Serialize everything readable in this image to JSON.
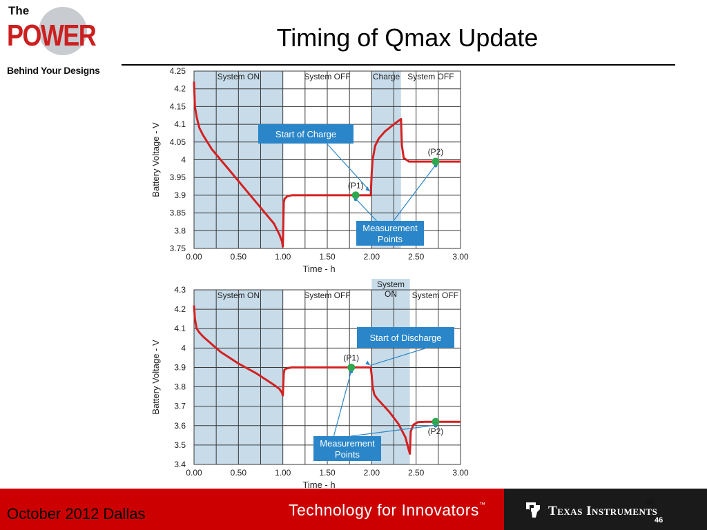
{
  "slide": {
    "logo": {
      "line1": "The",
      "line2": "POWER",
      "line3": "Behind Your Designs"
    },
    "title": "Timing of Qmax Update",
    "footer": {
      "date": "October 2012  Dallas",
      "slogan": "Technology for Innovators",
      "slogan_tm": "™",
      "company": "Texas Instruments",
      "page_number": "46"
    }
  },
  "chart_data": [
    {
      "type": "line",
      "xlabel": "Time - h",
      "ylabel": "Battery Voltage - V",
      "xlim": [
        0,
        3
      ],
      "ylim": [
        3.75,
        4.25
      ],
      "xticks": [
        "0.00",
        "0.50",
        "1.00",
        "1.50",
        "2.00",
        "2.50",
        "3.00"
      ],
      "yticks": [
        "3.75",
        "3.8",
        "3.85",
        "3.9",
        "3.95",
        "4",
        "4.05",
        "4.1",
        "4.15",
        "4.2",
        "4.25"
      ],
      "grid": true,
      "phases": [
        {
          "label": "System ON",
          "start": 0.0,
          "end": 1.0,
          "shaded": true
        },
        {
          "label": "System OFF",
          "start": 1.0,
          "end": 2.0,
          "shaded": false
        },
        {
          "label": "Charge",
          "start": 2.0,
          "end": 2.33,
          "shaded": true
        },
        {
          "label": "System OFF",
          "start": 2.33,
          "end": 3.0,
          "shaded": false
        }
      ],
      "series": [
        {
          "color": "#d42020",
          "x": [
            0.0,
            0.01,
            0.03,
            0.06,
            0.1,
            0.2,
            0.3,
            0.4,
            0.5,
            0.6,
            0.7,
            0.8,
            0.9,
            0.96,
            0.99,
            1.0,
            1.01,
            1.02,
            1.05,
            1.1,
            1.5,
            1.99,
            2.0,
            2.01,
            2.04,
            2.08,
            2.15,
            2.25,
            2.33,
            2.34,
            2.36,
            2.42,
            2.5,
            3.0
          ],
          "y": [
            4.22,
            4.15,
            4.12,
            4.09,
            4.07,
            4.03,
            4.0,
            3.97,
            3.94,
            3.91,
            3.88,
            3.85,
            3.82,
            3.79,
            3.77,
            3.755,
            3.88,
            3.89,
            3.897,
            3.9,
            3.9,
            3.9,
            3.96,
            4.0,
            4.04,
            4.06,
            4.08,
            4.1,
            4.115,
            4.04,
            4.005,
            3.995,
            3.995,
            3.995
          ]
        }
      ],
      "points": [
        {
          "label": "(P1)",
          "x": 1.82,
          "y": 3.9
        },
        {
          "label": "(P2)",
          "x": 2.72,
          "y": 3.995
        }
      ],
      "annotations": [
        {
          "text": "Start of Charge",
          "target_x": 2.0,
          "target_y": 3.905
        },
        {
          "text": "Measurement Points",
          "targets": [
            [
              1.82,
              3.9
            ],
            [
              2.72,
              3.995
            ]
          ]
        }
      ]
    },
    {
      "type": "line",
      "xlabel": "Time - h",
      "ylabel": "Battery Voltage - V",
      "xlim": [
        0,
        3
      ],
      "ylim": [
        3.4,
        4.3
      ],
      "xticks": [
        "0.00",
        "0.50",
        "1.00",
        "1.50",
        "2.00",
        "2.50",
        "3.00"
      ],
      "yticks": [
        "3.4",
        "3.5",
        "3.6",
        "3.7",
        "3.8",
        "3.9",
        "4",
        "4.1",
        "4.2",
        "4.3"
      ],
      "grid": true,
      "phases": [
        {
          "label": "System ON",
          "start": 0.0,
          "end": 1.0,
          "shaded": true
        },
        {
          "label": "System OFF",
          "start": 1.0,
          "end": 2.0,
          "shaded": false
        },
        {
          "label": "System ON",
          "start": 2.0,
          "end": 2.43,
          "shaded": true
        },
        {
          "label": "System OFF",
          "start": 2.43,
          "end": 3.0,
          "shaded": false
        }
      ],
      "series": [
        {
          "color": "#d42020",
          "x": [
            0.0,
            0.01,
            0.03,
            0.06,
            0.1,
            0.2,
            0.3,
            0.4,
            0.5,
            0.6,
            0.7,
            0.8,
            0.9,
            0.96,
            0.99,
            1.0,
            1.01,
            1.02,
            1.05,
            1.1,
            1.5,
            1.99,
            2.0,
            2.01,
            2.03,
            2.06,
            2.1,
            2.2,
            2.3,
            2.38,
            2.42,
            2.43,
            2.44,
            2.47,
            2.52,
            2.6,
            3.0
          ],
          "y": [
            4.22,
            4.15,
            4.1,
            4.08,
            4.06,
            4.02,
            3.98,
            3.95,
            3.92,
            3.895,
            3.87,
            3.84,
            3.81,
            3.79,
            3.77,
            3.755,
            3.87,
            3.89,
            3.896,
            3.9,
            3.9,
            3.9,
            3.86,
            3.8,
            3.76,
            3.74,
            3.72,
            3.67,
            3.61,
            3.54,
            3.47,
            3.455,
            3.57,
            3.605,
            3.618,
            3.62,
            3.62
          ]
        }
      ],
      "points": [
        {
          "label": "(P1)",
          "x": 1.77,
          "y": 3.9
        },
        {
          "label": "(P2)",
          "x": 2.72,
          "y": 3.62
        }
      ],
      "annotations": [
        {
          "text": "Start of Discharge",
          "target_x": 2.0,
          "target_y": 3.9
        },
        {
          "text": "Measurement Points",
          "targets": [
            [
              1.77,
              3.9
            ],
            [
              2.72,
              3.62
            ]
          ]
        }
      ]
    }
  ]
}
